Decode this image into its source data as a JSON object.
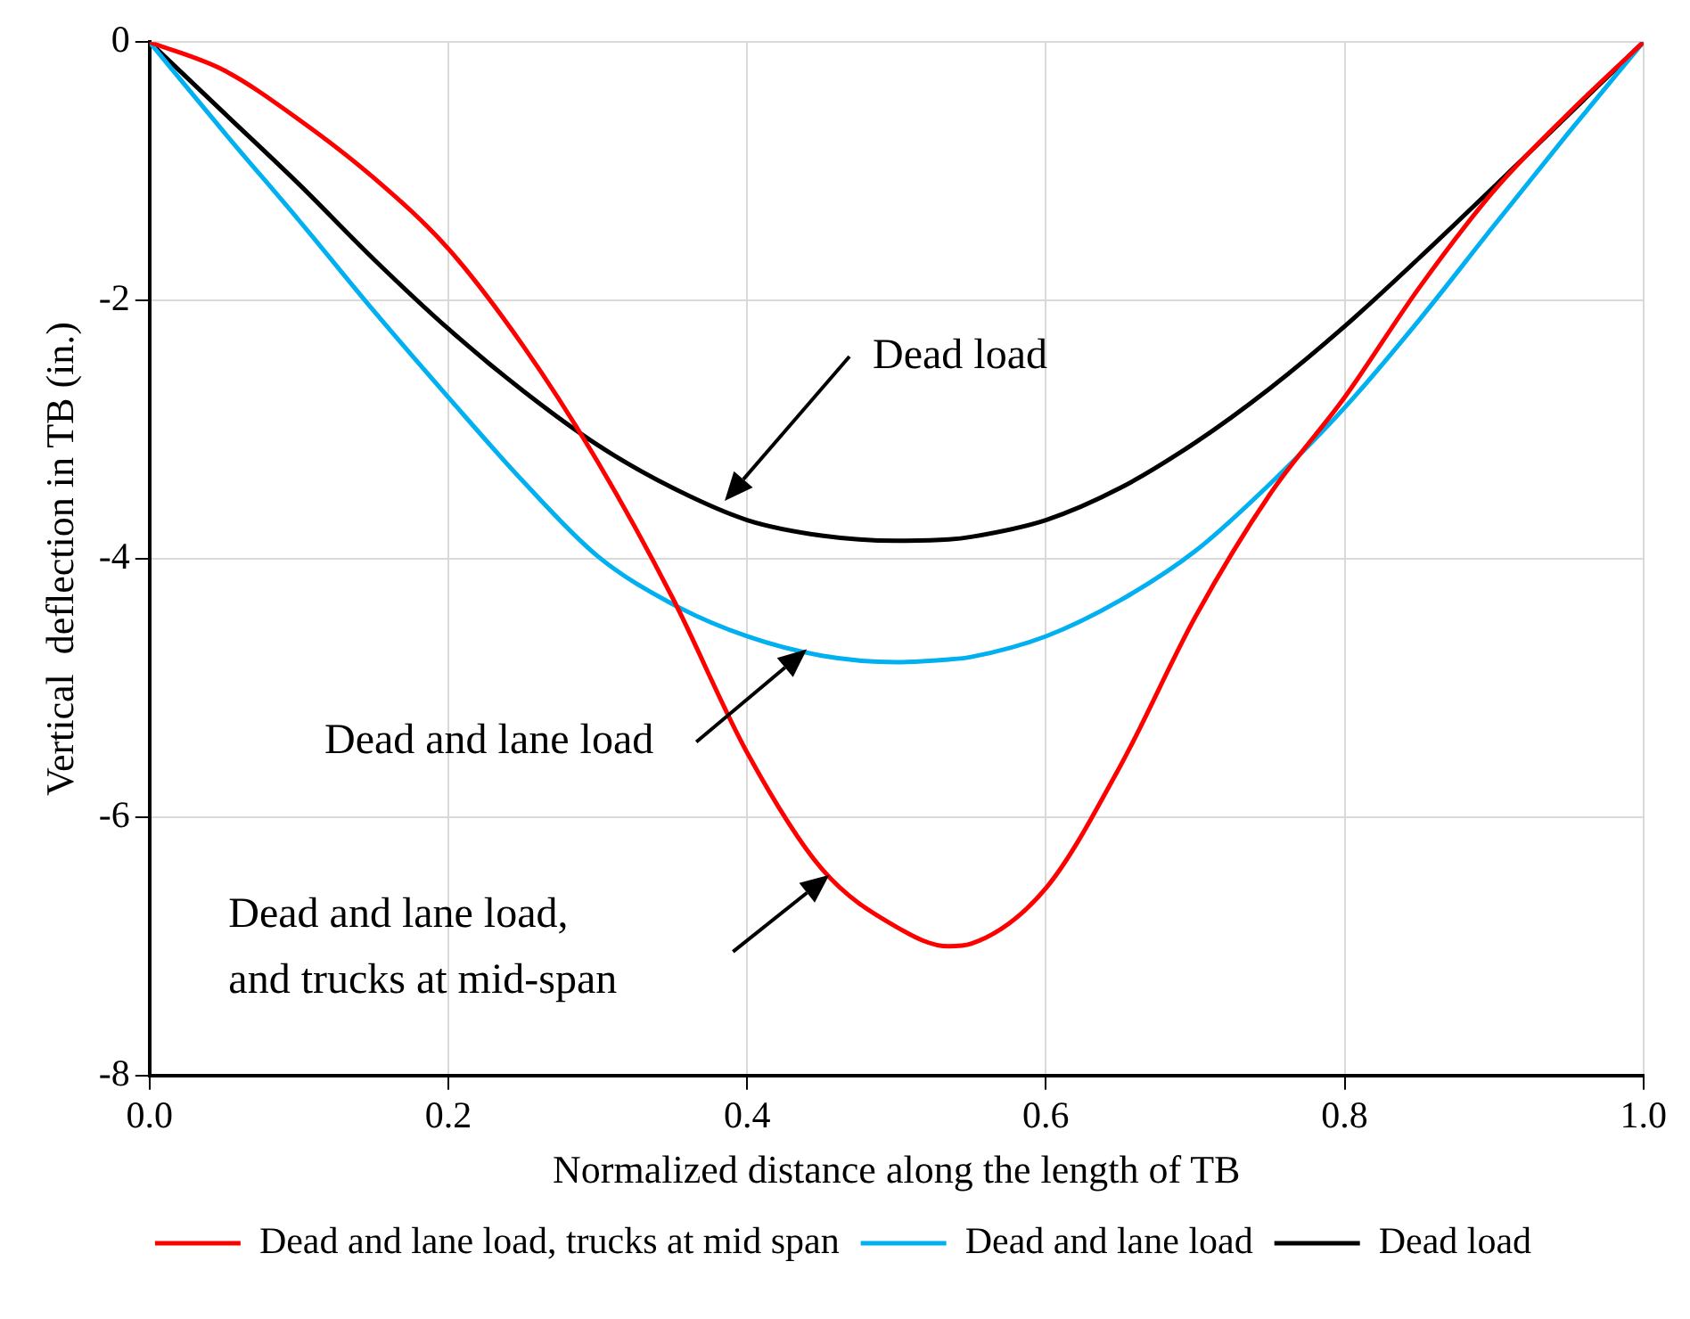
{
  "chart_data": {
    "type": "line",
    "xlabel": "Normalized distance along the length of TB",
    "ylabel": "Vertical  deflection in TB (in.)",
    "x": [
      0,
      0.05,
      0.1,
      0.15,
      0.2,
      0.25,
      0.3,
      0.35,
      0.4,
      0.45,
      0.5,
      0.535,
      0.55,
      0.6,
      0.65,
      0.7,
      0.75,
      0.8,
      0.85,
      0.9,
      0.95,
      1.0
    ],
    "series": [
      {
        "name": "Dead and lane load, trucks at mid span",
        "color": "#ff0000",
        "values": [
          0,
          -0.22,
          -0.6,
          -1.05,
          -1.6,
          -2.35,
          -3.25,
          -4.3,
          -5.5,
          -6.4,
          -6.85,
          -7.0,
          -6.98,
          -6.55,
          -5.6,
          -4.45,
          -3.5,
          -2.75,
          -1.9,
          -1.15,
          -0.55,
          0
        ]
      },
      {
        "name": "Dead and lane load",
        "color": "#00b0f0",
        "values": [
          0,
          -0.7,
          -1.38,
          -2.08,
          -2.75,
          -3.4,
          -3.98,
          -4.35,
          -4.6,
          -4.75,
          -4.8,
          -4.78,
          -4.76,
          -4.6,
          -4.32,
          -3.94,
          -3.42,
          -2.83,
          -2.15,
          -1.42,
          -0.7,
          0
        ]
      },
      {
        "name": "Dead load",
        "color": "#000000",
        "values": [
          0,
          -0.55,
          -1.1,
          -1.68,
          -2.22,
          -2.7,
          -3.12,
          -3.45,
          -3.7,
          -3.82,
          -3.86,
          -3.85,
          -3.83,
          -3.7,
          -3.45,
          -3.1,
          -2.68,
          -2.2,
          -1.67,
          -1.12,
          -0.56,
          0
        ]
      }
    ],
    "xlim": [
      0,
      1
    ],
    "ylim": [
      -8,
      0
    ],
    "xticks": [
      {
        "value": 0,
        "label": "0.0"
      },
      {
        "value": 0.2,
        "label": "0.2"
      },
      {
        "value": 0.4,
        "label": "0.4"
      },
      {
        "value": 0.6,
        "label": "0.6"
      },
      {
        "value": 0.8,
        "label": "0.8"
      },
      {
        "value": 1,
        "label": "1.0"
      }
    ],
    "yticks": [
      -8,
      -6,
      -4,
      -2,
      0
    ],
    "grid": true,
    "legend": "bottom",
    "marker": "none",
    "line_style": "solid",
    "annotations": [
      "Dead load",
      "Dead and lane load",
      "Dead and lane load,\nand trucks at mid-span"
    ]
  }
}
